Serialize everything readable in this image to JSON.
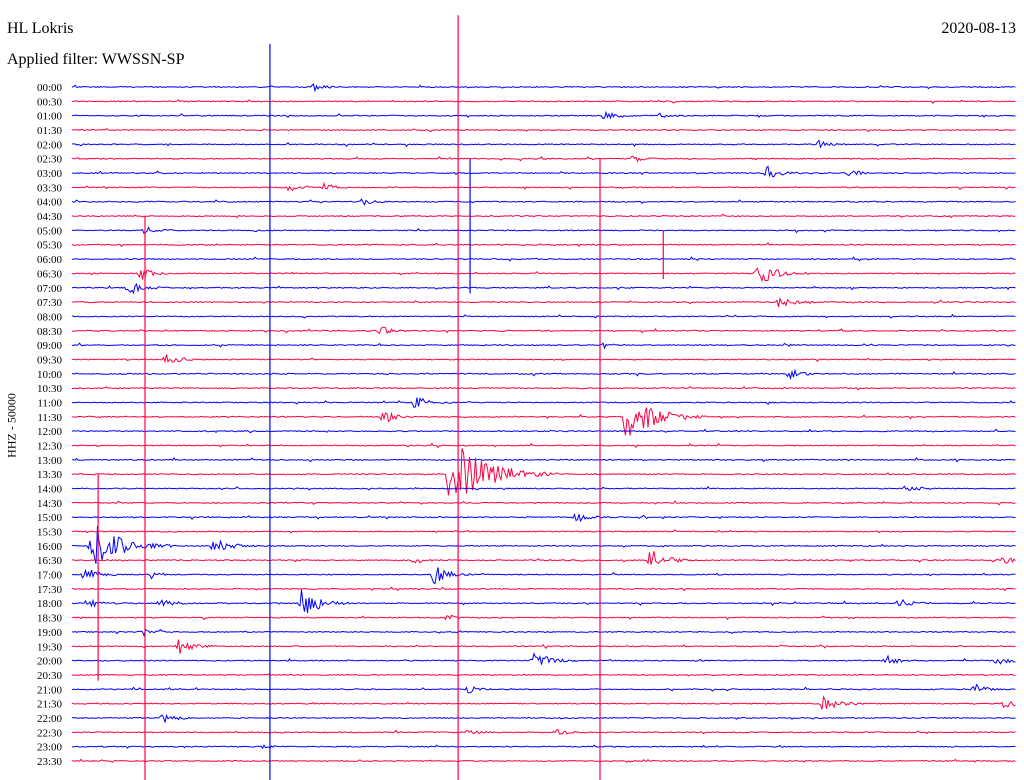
{
  "header": {
    "station": "HL Lokris",
    "date": "2020-08-13",
    "filter": "Applied filter: WWSSN-SP",
    "channel": "HHZ - 50000"
  },
  "chart_data": {
    "type": "line",
    "title": "HL Lokris",
    "subtitle": "Applied filter: WWSSN-SP",
    "date": "2020-08-13",
    "ylabel": "HHZ - 50000",
    "row_minutes": 30,
    "colors": [
      "#0000ff",
      "#ff0040"
    ],
    "rows": [
      "00:00",
      "00:30",
      "01:00",
      "01:30",
      "02:00",
      "02:30",
      "03:00",
      "03:30",
      "04:00",
      "04:30",
      "05:00",
      "05:30",
      "06:00",
      "06:30",
      "07:00",
      "07:30",
      "08:00",
      "08:30",
      "09:00",
      "09:30",
      "10:00",
      "10:30",
      "11:00",
      "11:30",
      "12:00",
      "12:30",
      "13:00",
      "13:30",
      "14:00",
      "14:30",
      "15:00",
      "15:30",
      "16:00",
      "16:30",
      "17:00",
      "17:30",
      "18:00",
      "18:30",
      "19:00",
      "19:30",
      "20:00",
      "20:30",
      "21:00",
      "21:30",
      "22:00",
      "22:30",
      "23:00",
      "23:30"
    ],
    "events": [
      {
        "row": 0,
        "minute": 7.7,
        "amp": 4
      },
      {
        "row": 2,
        "minute": 16.9,
        "amp": 5
      },
      {
        "row": 2,
        "minute": 18.7,
        "amp": 2.5
      },
      {
        "row": 4,
        "minute": 23.7,
        "amp": 4
      },
      {
        "row": 5,
        "minute": 17.8,
        "amp": 4
      },
      {
        "row": 6,
        "minute": 22.1,
        "amp": 8
      },
      {
        "row": 6,
        "minute": 24.7,
        "amp": 4
      },
      {
        "row": 7,
        "minute": 6.9,
        "amp": 4
      },
      {
        "row": 7,
        "minute": 8.0,
        "amp": 5
      },
      {
        "row": 8,
        "minute": 9.2,
        "amp": 4
      },
      {
        "row": 10,
        "minute": 2.3,
        "amp": 5
      },
      {
        "row": 13,
        "minute": 2.2,
        "amp": 7
      },
      {
        "row": 13,
        "minute": 21.8,
        "amp": 14
      },
      {
        "row": 14,
        "minute": 1.8,
        "amp": 8
      },
      {
        "row": 15,
        "minute": 22.5,
        "amp": 7
      },
      {
        "row": 17,
        "minute": 9.8,
        "amp": 5
      },
      {
        "row": 18,
        "minute": 16.9,
        "amp": 3
      },
      {
        "row": 19,
        "minute": 3.0,
        "amp": 8
      },
      {
        "row": 20,
        "minute": 22.8,
        "amp": 6
      },
      {
        "row": 22,
        "minute": 10.9,
        "amp": 8
      },
      {
        "row": 23,
        "minute": 9.9,
        "amp": 7
      },
      {
        "row": 23,
        "minute": 17.6,
        "amp": 28
      },
      {
        "row": 27,
        "minute": 12.0,
        "amp": 40
      },
      {
        "row": 28,
        "minute": 26.5,
        "amp": 5
      },
      {
        "row": 30,
        "minute": 16.0,
        "amp": 6
      },
      {
        "row": 32,
        "minute": 0.6,
        "amp": 28
      },
      {
        "row": 32,
        "minute": 4.5,
        "amp": 10
      },
      {
        "row": 33,
        "minute": 10.9,
        "amp": 4
      },
      {
        "row": 33,
        "minute": 18.4,
        "amp": 12
      },
      {
        "row": 33,
        "minute": 29.6,
        "amp": 6
      },
      {
        "row": 34,
        "minute": 0.4,
        "amp": 8
      },
      {
        "row": 34,
        "minute": 2.5,
        "amp": 4
      },
      {
        "row": 34,
        "minute": 11.5,
        "amp": 10
      },
      {
        "row": 36,
        "minute": 0.5,
        "amp": 5
      },
      {
        "row": 36,
        "minute": 2.8,
        "amp": 6
      },
      {
        "row": 36,
        "minute": 7.3,
        "amp": 15
      },
      {
        "row": 36,
        "minute": 26.3,
        "amp": 6
      },
      {
        "row": 37,
        "minute": 11.9,
        "amp": 4
      },
      {
        "row": 38,
        "minute": 2.3,
        "amp": 4
      },
      {
        "row": 39,
        "minute": 3.4,
        "amp": 8
      },
      {
        "row": 40,
        "minute": 14.7,
        "amp": 10
      },
      {
        "row": 40,
        "minute": 25.9,
        "amp": 5
      },
      {
        "row": 40,
        "minute": 29.4,
        "amp": 6
      },
      {
        "row": 42,
        "minute": 12.6,
        "amp": 4
      },
      {
        "row": 42,
        "minute": 28.7,
        "amp": 5
      },
      {
        "row": 43,
        "minute": 23.8,
        "amp": 10
      },
      {
        "row": 43,
        "minute": 29.6,
        "amp": 5
      },
      {
        "row": 44,
        "minute": 2.9,
        "amp": 5
      },
      {
        "row": 45,
        "minute": 12.6,
        "amp": 3
      },
      {
        "row": 45,
        "minute": 15.4,
        "amp": 4
      },
      {
        "row": 46,
        "minute": 6.1,
        "amp": 3
      }
    ],
    "glitches": [
      {
        "minute": 0.83,
        "from_row": 27,
        "to_row": 40,
        "color": 1
      },
      {
        "minute": 2.32,
        "from_row": 9,
        "to_row": 47,
        "color": 1
      },
      {
        "minute": 6.29,
        "from_row": -3,
        "to_row": 47,
        "color": 0
      },
      {
        "minute": 12.27,
        "from_row": -5,
        "to_row": 47,
        "color": 1
      },
      {
        "minute": 12.65,
        "from_row": 5,
        "to_row": 13,
        "color": 0
      },
      {
        "minute": 16.78,
        "from_row": 5,
        "to_row": 47,
        "color": 1
      },
      {
        "minute": 18.79,
        "from_row": 10,
        "to_row": 12,
        "color": 1
      }
    ]
  }
}
